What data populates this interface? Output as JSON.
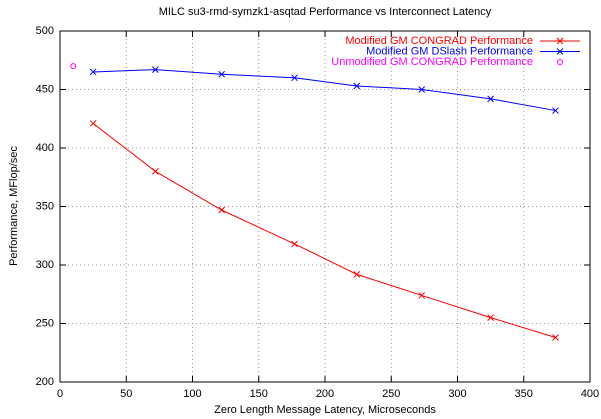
{
  "chart_data": {
    "type": "line",
    "title": "MILC su3-rmd-symzk1-asqtad Performance vs Interconnect Latency",
    "x_label": "Zero Length Message Latency, Microseconds",
    "y_label": "Performance, MFlop/sec",
    "xlim": [
      0,
      400
    ],
    "xticks": [
      0,
      50,
      100,
      150,
      200,
      250,
      300,
      350,
      400
    ],
    "ylim": [
      200,
      500
    ],
    "yticks": [
      200,
      250,
      300,
      350,
      400,
      450,
      500
    ],
    "grid": true,
    "legend": "top-right",
    "series": [
      {
        "name": "Modified GM CONGRAD Performance",
        "color": "#ff0000",
        "style": "linespoints",
        "x": [
          25,
          72,
          122,
          177,
          224,
          273,
          325,
          374
        ],
        "values": [
          421,
          380,
          347,
          318,
          292,
          274,
          255,
          238
        ]
      },
      {
        "name": "Modified GM DSlash Performance",
        "color": "#0000ff",
        "style": "linespoints",
        "x": [
          25,
          72,
          122,
          177,
          224,
          273,
          325,
          374
        ],
        "values": [
          465,
          467,
          463,
          460,
          453,
          450,
          442,
          432
        ]
      },
      {
        "name": "Unmodified GM CONGRAD Performance",
        "color": "#ff00ff",
        "style": "points",
        "x": [
          10
        ],
        "values": [
          470
        ]
      }
    ]
  }
}
